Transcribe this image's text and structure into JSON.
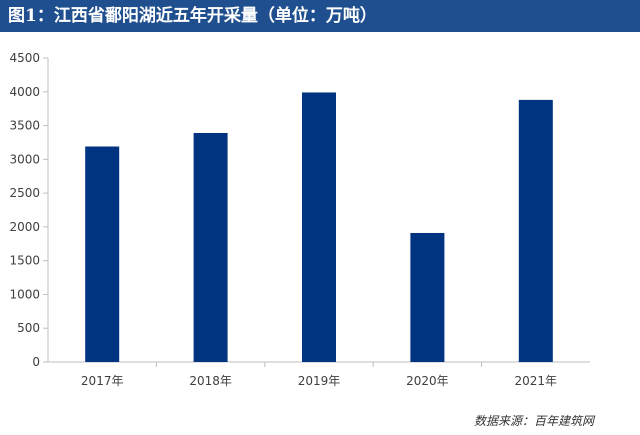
{
  "header": {
    "title": "图1：江西省鄱阳湖近五年开采量（单位：万吨）"
  },
  "footer": {
    "source": "数据来源：百年建筑网"
  },
  "colors": {
    "bar": "#003480",
    "title_bg": "#1f4f8f",
    "axis": "#bfbfbf"
  },
  "chart_data": {
    "type": "bar",
    "title": "图1：江西省鄱阳湖近五年开采量（单位：万吨）",
    "categories": [
      "2017年",
      "2018年",
      "2019年",
      "2020年",
      "2021年"
    ],
    "values": [
      3190,
      3390,
      3990,
      1910,
      3880
    ],
    "yticks": [
      "0",
      "500",
      "1000",
      "1500",
      "2000",
      "2500",
      "3000",
      "3500",
      "4000",
      "4500"
    ],
    "ylim": [
      0,
      4500
    ],
    "xlabel": "",
    "ylabel": "",
    "grid": false,
    "legend": "none"
  }
}
